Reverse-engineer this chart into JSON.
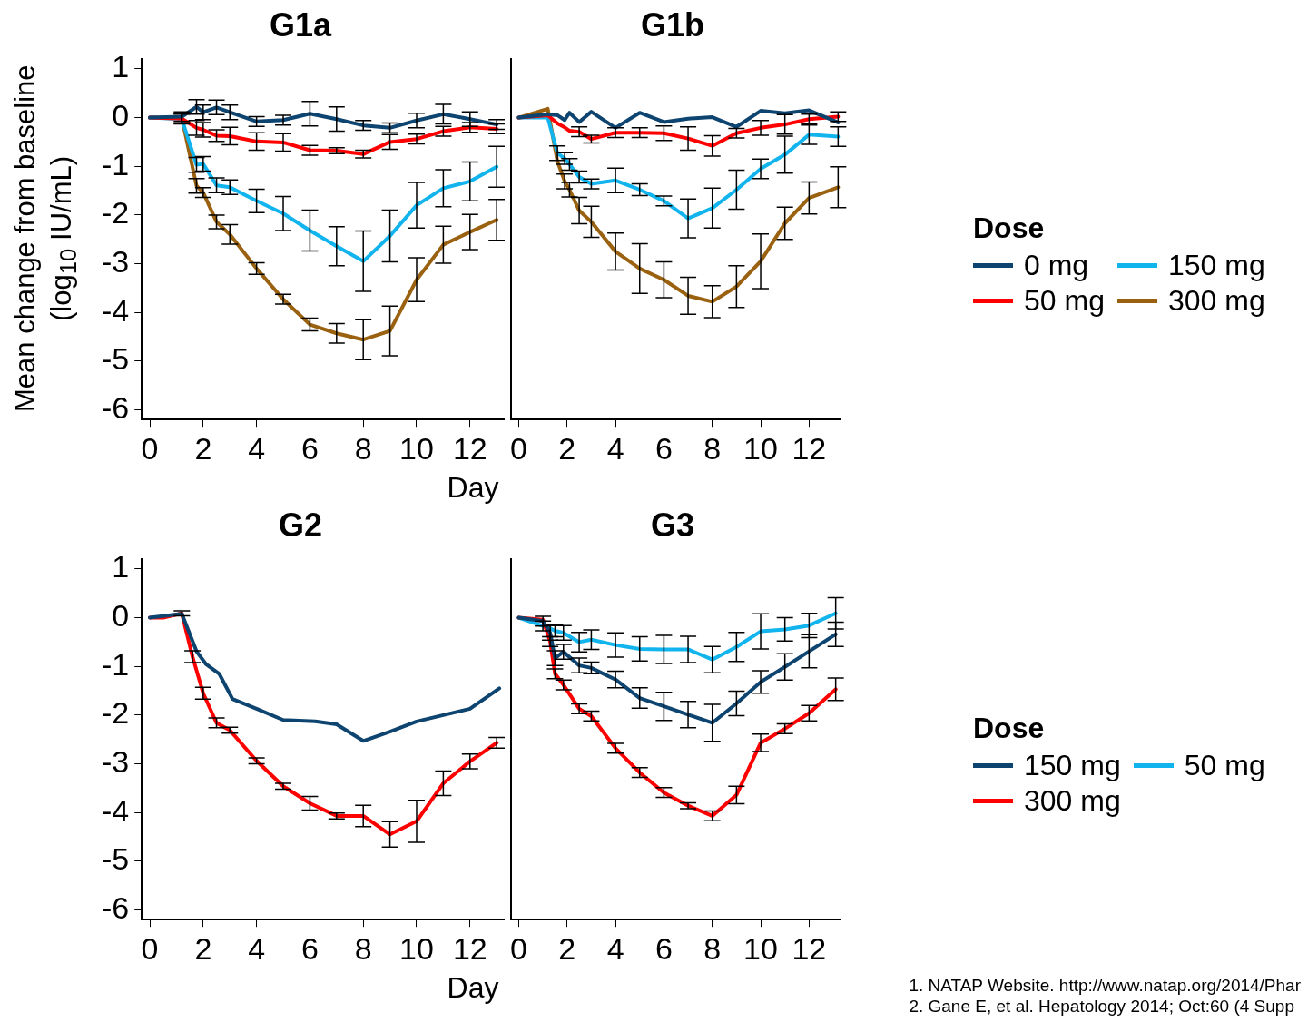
{
  "chart_data": [
    {
      "type": "line",
      "title": "G1a",
      "legend": "right",
      "legend_title": "Dose",
      "ylabel": "Mean change from baseline (log$_{10}$ IU/mL)",
      "xlabel": "Day",
      "x": [
        0,
        1.2,
        1.75,
        2,
        2.5,
        3,
        4,
        5,
        6,
        7,
        8,
        9,
        10,
        11,
        12,
        13
      ],
      "xlim": [
        -0.3,
        13.3
      ],
      "xticks": [
        0,
        2,
        4,
        6,
        8,
        10,
        12
      ],
      "ylim": [
        -6.2,
        1.2
      ],
      "yticks": [
        -6,
        -5,
        -4,
        -3,
        -2,
        -1,
        0,
        1
      ],
      "series": [
        {
          "name": "0 mg",
          "color": "#0e4470",
          "values": [
            0,
            0.02,
            0.22,
            0.11,
            0.21,
            0.11,
            -0.08,
            -0.05,
            0.08,
            -0.03,
            -0.16,
            -0.21,
            -0.06,
            0.07,
            -0.03,
            -0.14
          ],
          "errors": [
            null,
            0.1,
            0.15,
            0.15,
            0.15,
            0.15,
            0.1,
            0.1,
            0.25,
            0.25,
            0.1,
            0.1,
            0.15,
            0.2,
            0.15,
            0.1
          ]
        },
        {
          "name": "50 mg",
          "color": "#ff0000",
          "values": [
            0,
            -0.02,
            -0.21,
            -0.25,
            -0.37,
            -0.38,
            -0.49,
            -0.51,
            -0.67,
            -0.68,
            -0.75,
            -0.5,
            -0.44,
            -0.28,
            -0.2,
            -0.23
          ],
          "errors": [
            null,
            0.1,
            0.15,
            0.15,
            0.12,
            0.18,
            0.18,
            0.18,
            0.1,
            0.06,
            0.08,
            0.15,
            0.1,
            0.1,
            0.1,
            0.1
          ]
        },
        {
          "name": "150 mg",
          "color": "#12b4ee",
          "values": [
            0,
            -0.03,
            -0.97,
            -0.95,
            -1.39,
            -1.43,
            -1.71,
            -1.97,
            -2.32,
            -2.64,
            -2.95,
            -2.43,
            -1.8,
            -1.45,
            -1.31,
            -1.01
          ],
          "errors": [
            null,
            0.1,
            0.15,
            0.15,
            0.15,
            0.15,
            0.24,
            0.35,
            0.42,
            0.4,
            0.62,
            0.53,
            0.47,
            0.38,
            0.4,
            0.42
          ]
        },
        {
          "name": "300 mg",
          "color": "#9a6210",
          "values": [
            0,
            -0.01,
            -1.4,
            -1.54,
            -2.14,
            -2.4,
            -3.1,
            -3.73,
            -4.25,
            -4.43,
            -4.56,
            -4.38,
            -3.33,
            -2.61,
            -2.35,
            -2.1
          ],
          "errors": [
            null,
            0.1,
            0.15,
            0.1,
            0.14,
            0.2,
            0.12,
            0.1,
            0.13,
            0.2,
            0.41,
            0.51,
            0.45,
            0.38,
            0.36,
            0.42
          ]
        }
      ]
    },
    {
      "type": "line",
      "title": "G1b",
      "tick_labels": "x",
      "x": [
        0,
        1.2,
        1.6,
        1.9,
        2.1,
        2.5,
        3,
        4,
        5,
        6,
        7,
        8,
        9,
        10,
        11,
        12,
        13.2
      ],
      "xlim": [
        -0.3,
        13.3
      ],
      "xticks": [
        0,
        2,
        4,
        6,
        8,
        10,
        12
      ],
      "ylim": [
        -6.2,
        1.2
      ],
      "yticks": [
        -6,
        -5,
        -4,
        -3,
        -2,
        -1,
        0,
        1
      ],
      "series": [
        {
          "color": "#0e4470",
          "values": [
            0,
            0.07,
            0.05,
            -0.05,
            0.1,
            -0.09,
            0.12,
            -0.21,
            0.1,
            -0.09,
            -0.02,
            0.01,
            -0.19,
            0.14,
            0.09,
            0.15,
            -0.1
          ]
        },
        {
          "color": "#ff0000",
          "values": [
            0,
            0.05,
            -0.12,
            -0.2,
            -0.27,
            -0.29,
            -0.44,
            -0.31,
            -0.31,
            -0.32,
            -0.43,
            -0.58,
            -0.32,
            -0.21,
            -0.14,
            -0.03,
            0.02
          ],
          "errors": [
            null,
            null,
            null,
            null,
            null,
            0.1,
            0.08,
            0.1,
            0.1,
            0.15,
            0.24,
            0.21,
            0.1,
            0.15,
            0.2,
            0.1,
            0.1
          ]
        },
        {
          "color": "#12b4ee",
          "values": [
            0,
            0,
            -0.73,
            -0.84,
            -0.96,
            -1.22,
            -1.36,
            -1.29,
            -1.48,
            -1.71,
            -2.07,
            -1.86,
            -1.48,
            -1.05,
            -0.76,
            -0.35,
            -0.39
          ],
          "errors": [
            null,
            null,
            0.15,
            0.12,
            0.12,
            0.12,
            0.1,
            0.25,
            0.12,
            0.1,
            0.4,
            0.41,
            0.4,
            0.2,
            0.38,
            0.2,
            0.2
          ]
        },
        {
          "color": "#9a6210",
          "values": [
            0,
            0.18,
            -0.9,
            -1.31,
            -1.48,
            -1.91,
            -2.14,
            -2.75,
            -3.1,
            -3.33,
            -3.66,
            -3.78,
            -3.47,
            -2.95,
            -2.17,
            -1.65,
            -1.43
          ],
          "errors": [
            null,
            null,
            null,
            0.15,
            0.15,
            0.27,
            0.32,
            0.38,
            0.51,
            0.37,
            0.38,
            0.33,
            0.43,
            0.56,
            0.33,
            0.33,
            0.42
          ]
        }
      ]
    },
    {
      "type": "line",
      "title": "G2",
      "xlabel": "Day",
      "xlim": [
        -0.3,
        13.3
      ],
      "xticks": [
        0,
        2,
        4,
        6,
        8,
        10,
        12
      ],
      "ylim": [
        -6.2,
        1.2
      ],
      "yticks": [
        -6,
        -5,
        -4,
        -3,
        -2,
        -1,
        0,
        1
      ],
      "series": [
        {
          "color": "#0e4470",
          "x": [
            0,
            1.2,
            1.75,
            2.1,
            2.6,
            3.1,
            4,
            5,
            6.2,
            7,
            8,
            9,
            10,
            12,
            13.1
          ],
          "values": [
            0,
            0.08,
            -0.69,
            -0.95,
            -1.15,
            -1.67,
            -1.87,
            -2.1,
            -2.13,
            -2.19,
            -2.53,
            -2.34,
            -2.13,
            -1.87,
            -1.45
          ]
        },
        {
          "color": "#ff0000",
          "x": [
            0,
            0.5,
            1.2,
            1.6,
            2,
            2.5,
            3,
            4,
            5,
            6,
            7,
            8,
            9,
            10,
            11,
            12,
            13
          ],
          "values": [
            0,
            0,
            0.09,
            -0.8,
            -1.55,
            -2.16,
            -2.31,
            -2.94,
            -3.46,
            -3.81,
            -4.07,
            -4.07,
            -4.45,
            -4.18,
            -3.4,
            -2.95,
            -2.57
          ],
          "errors": [
            null,
            null,
            0.05,
            0.12,
            0.12,
            0.1,
            0.06,
            0.06,
            0.06,
            0.14,
            0.06,
            0.22,
            0.26,
            0.43,
            0.25,
            0.15,
            0.11
          ]
        }
      ]
    },
    {
      "type": "line",
      "title": "G3",
      "legend": "right",
      "legend_title": "Dose",
      "tick_labels": "x",
      "x": [
        0,
        1,
        1.3,
        1.5,
        1.85,
        2.5,
        3,
        4,
        5,
        6,
        7,
        8,
        9,
        10,
        11,
        12,
        13.1
      ],
      "xlim": [
        -0.3,
        13.3
      ],
      "xticks": [
        0,
        2,
        4,
        6,
        8,
        10,
        12
      ],
      "ylim": [
        -6.2,
        1.2
      ],
      "yticks": [
        -6,
        -5,
        -4,
        -3,
        -2,
        -1,
        0,
        1
      ],
      "annotations": [
        "1. NATAP Website. http://www.natap.org/2014/Phar",
        "2. Gane E, et al. Hepatology 2014; Oct:60 (4 Supp"
      ],
      "series": [
        {
          "name": "150 mg",
          "color": "#0e4470",
          "values": [
            0,
            -0.07,
            -0.31,
            -0.83,
            -0.7,
            -0.98,
            -1.03,
            -1.27,
            -1.65,
            -1.82,
            -1.99,
            -2.16,
            -1.76,
            -1.32,
            -1.01,
            -0.69,
            -0.34
          ],
          "errors": [
            null,
            0.1,
            0.15,
            0.15,
            0.15,
            0.15,
            0.12,
            0.17,
            0.21,
            0.29,
            0.27,
            0.38,
            0.25,
            0.23,
            0.27,
            0.34,
            0.25
          ]
        },
        {
          "name": "300 mg",
          "color": "#ff0000",
          "values": [
            0,
            -0.04,
            -0.49,
            -1.15,
            -1.38,
            -1.87,
            -2.02,
            -2.68,
            -3.18,
            -3.59,
            -3.86,
            -4.07,
            -3.64,
            -2.57,
            -2.28,
            -1.96,
            -1.47
          ],
          "errors": [
            null,
            null,
            0.1,
            0.1,
            0.1,
            0.1,
            0.1,
            0.1,
            0.1,
            0.1,
            0.06,
            0.1,
            0.18,
            0.18,
            0.1,
            0.16,
            0.23
          ]
        },
        {
          "name": "50 mg",
          "color": "#12b4ee",
          "values": [
            0,
            -0.17,
            -0.22,
            -0.27,
            -0.31,
            -0.5,
            -0.45,
            -0.56,
            -0.64,
            -0.65,
            -0.65,
            -0.86,
            -0.6,
            -0.28,
            -0.24,
            -0.16,
            0.09
          ],
          "errors": [
            null,
            0.1,
            null,
            0.12,
            0.15,
            0.2,
            0.2,
            0.25,
            0.25,
            0.29,
            0.27,
            0.27,
            0.3,
            0.36,
            0.24,
            0.25,
            0.32
          ]
        }
      ]
    }
  ]
}
